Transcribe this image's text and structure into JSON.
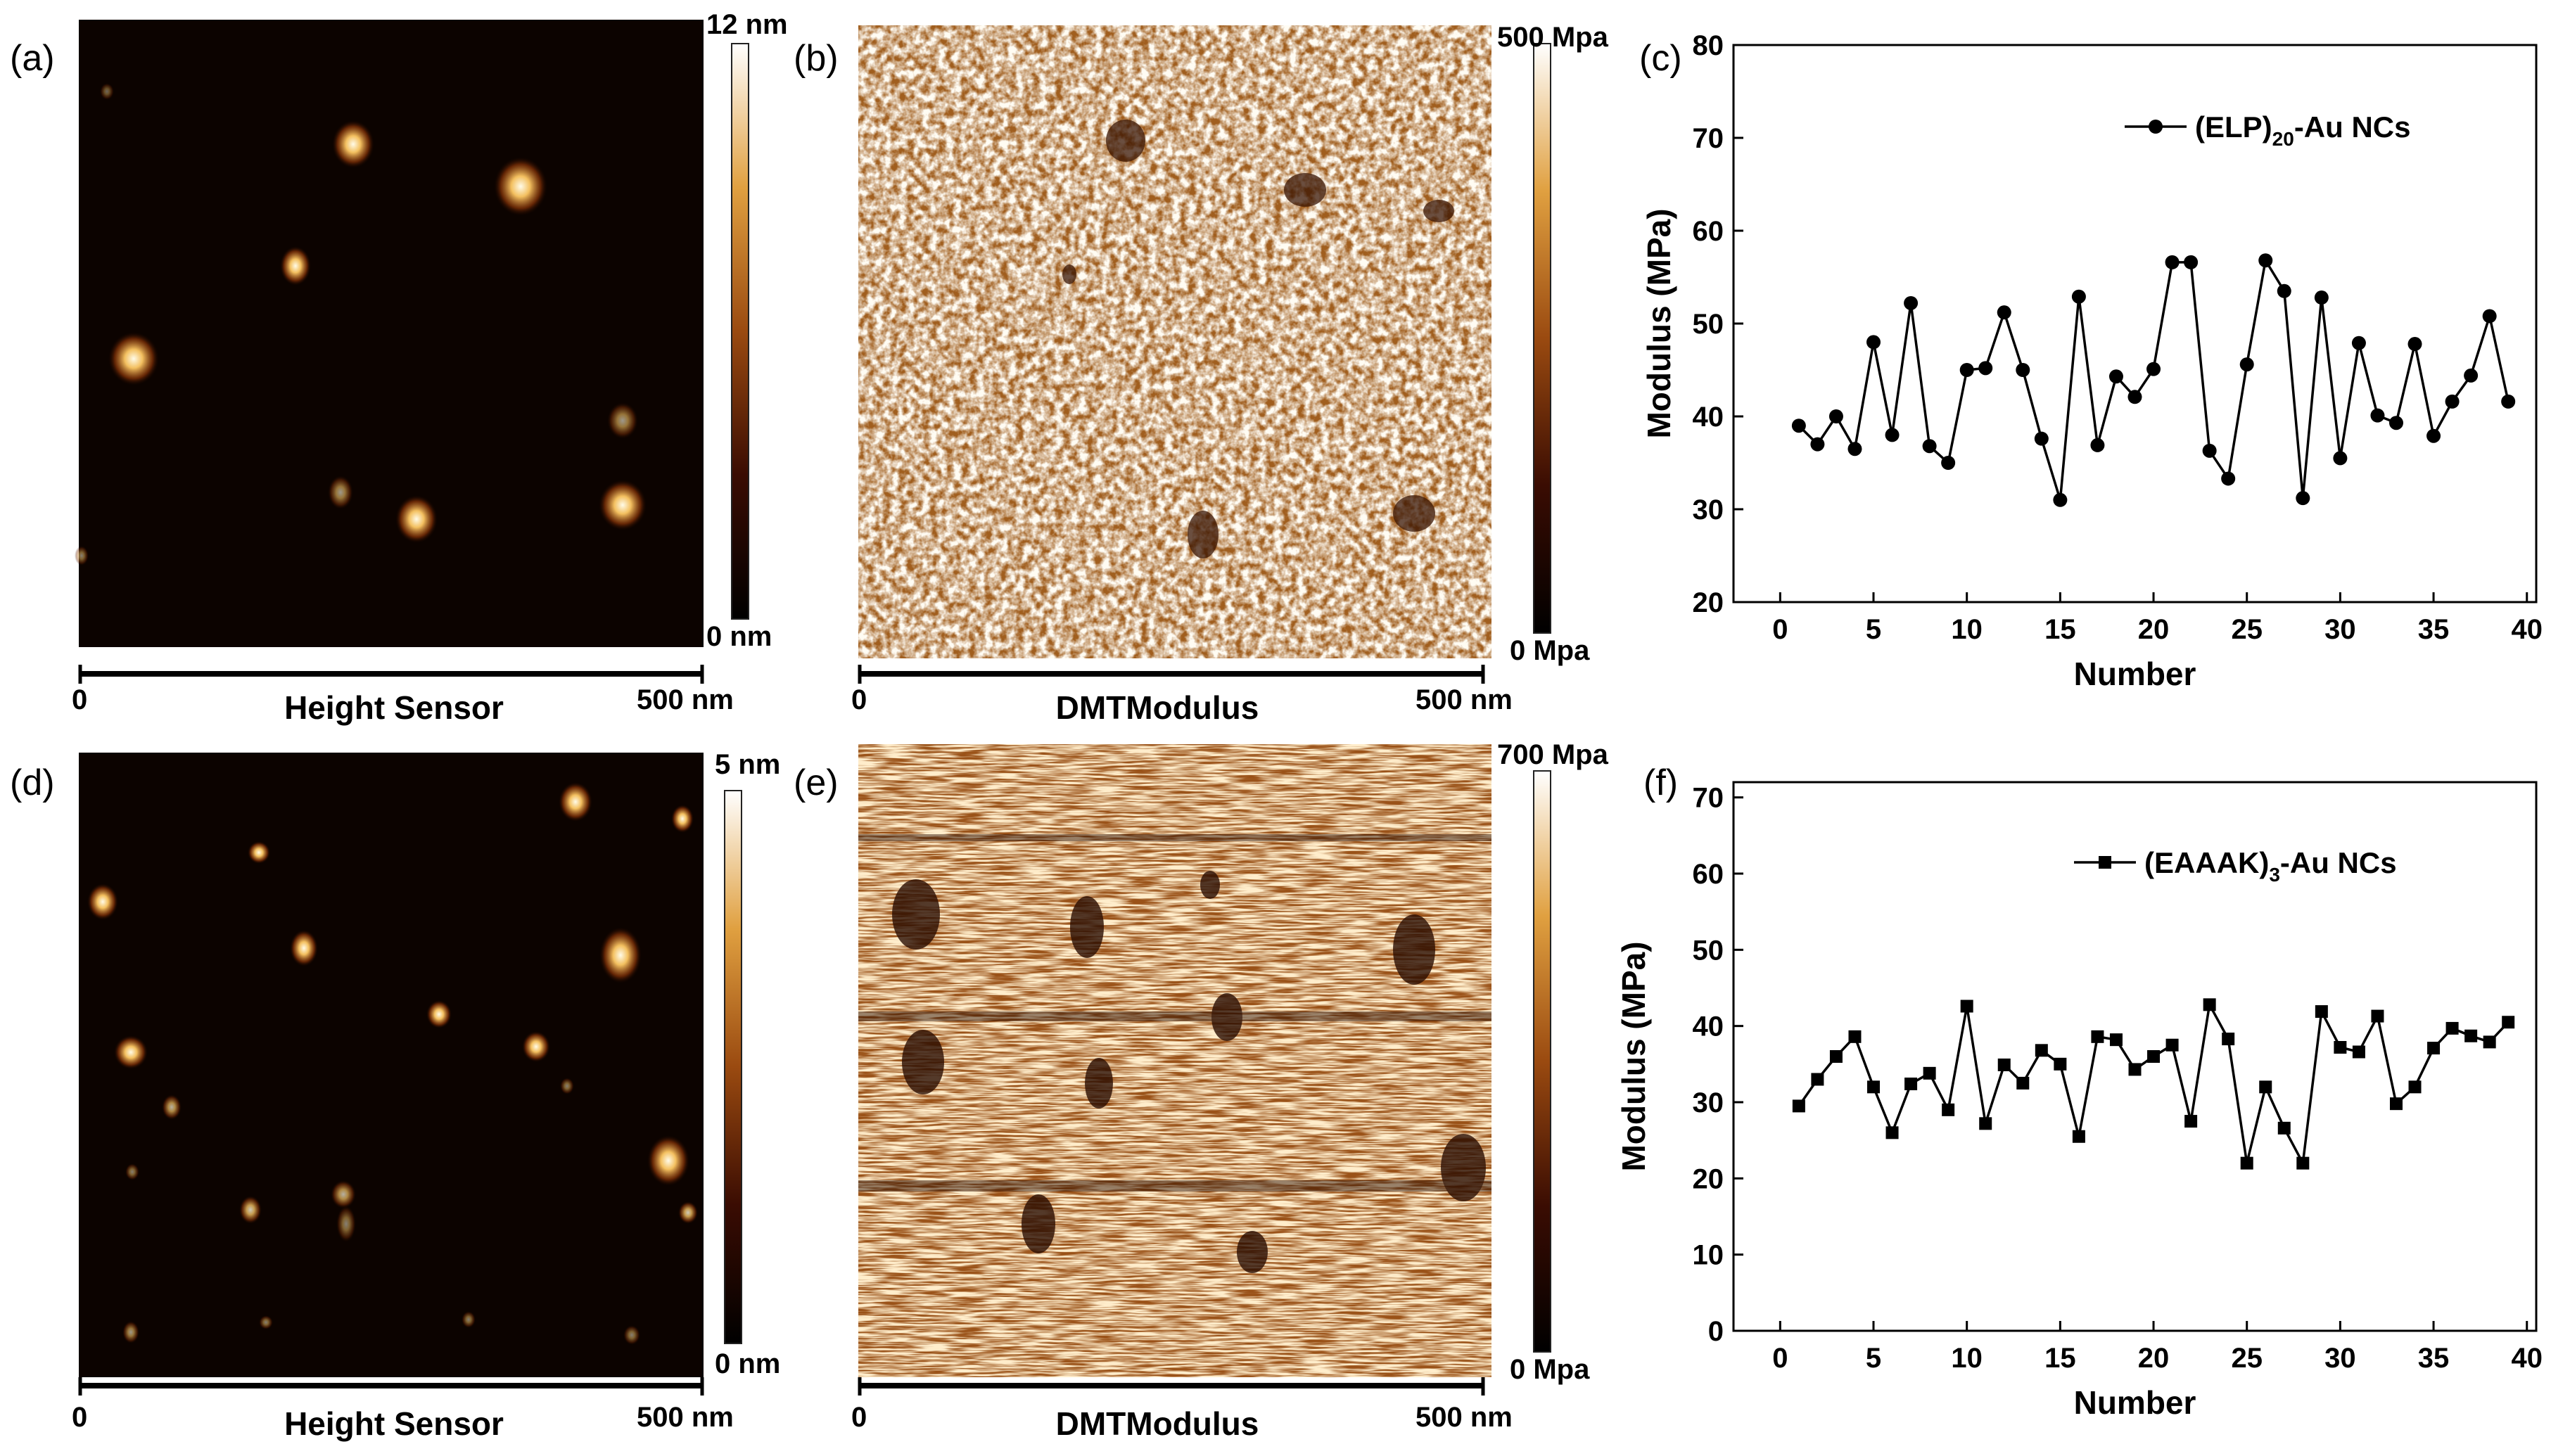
{
  "panels": {
    "a": {
      "label": "(a)",
      "caption": "Height Sensor",
      "scale_start": "0",
      "scale_end": "500 nm",
      "cbar_max": "12 nm",
      "cbar_min": "0 nm"
    },
    "b": {
      "label": "(b)",
      "caption": "DMTModulus",
      "scale_start": "0",
      "scale_end": "500 nm",
      "cbar_max": "500 Mpa",
      "cbar_min": "0 Mpa"
    },
    "c": {
      "label": "(c)"
    },
    "d": {
      "label": "(d)",
      "caption": "Height Sensor",
      "scale_start": "0",
      "scale_end": "500 nm",
      "cbar_max": "5 nm",
      "cbar_min": "0 nm"
    },
    "e": {
      "label": "(e)",
      "caption": "DMTModulus",
      "scale_start": "0",
      "scale_end": "500 nm",
      "cbar_max": "700 Mpa",
      "cbar_min": "0 Mpa"
    },
    "f": {
      "label": "(f)"
    }
  },
  "colors": {
    "afm_dark": "#0c0300",
    "afm_mid": "#b06a1a",
    "afm_bright": "#fff7e2",
    "modulus_bg": "#a05e1e"
  },
  "chart_data": [
    {
      "type": "line",
      "marker": "circle",
      "xlabel": "Number",
      "ylabel": "Modulus (MPa)",
      "xlim": [
        -2.5,
        40.5
      ],
      "ylim": [
        20,
        80
      ],
      "xticks": [
        0,
        5,
        10,
        15,
        20,
        25,
        30,
        35,
        40
      ],
      "yticks": [
        20,
        30,
        40,
        50,
        60,
        70,
        80
      ],
      "legend": {
        "prefix": "(ELP)",
        "sub": "20",
        "suffix": "-Au NCs",
        "position": "top-right"
      },
      "series": [
        {
          "name": "(ELP)20-Au NCs",
          "x": [
            1,
            2,
            3,
            4,
            5,
            6,
            7,
            8,
            9,
            10,
            11,
            12,
            13,
            14,
            15,
            16,
            17,
            18,
            19,
            20,
            21,
            22,
            23,
            24,
            25,
            26,
            27,
            28,
            29,
            30,
            31,
            32,
            33,
            34,
            35,
            36,
            37,
            38,
            39
          ],
          "values": [
            39,
            37,
            40,
            36.5,
            48,
            38,
            52.2,
            36.8,
            35,
            45,
            45.2,
            51.2,
            45,
            37.6,
            31,
            52.9,
            36.9,
            44.3,
            42.1,
            45.1,
            56.6,
            56.6,
            36.3,
            33.3,
            45.6,
            56.8,
            53.5,
            31.2,
            52.8,
            35.5,
            47.9,
            40.1,
            39.3,
            47.8,
            37.9,
            41.6,
            44.4,
            50.8,
            41.6
          ]
        }
      ]
    },
    {
      "type": "line",
      "marker": "square",
      "xlabel": "Number",
      "ylabel": "Modulus (MPa)",
      "xlim": [
        -2.5,
        40.5
      ],
      "ylim": [
        0,
        72
      ],
      "xticks": [
        0,
        5,
        10,
        15,
        20,
        25,
        30,
        35,
        40
      ],
      "yticks": [
        0,
        10,
        20,
        30,
        40,
        50,
        60,
        70
      ],
      "legend": {
        "prefix": "(EAAAK)",
        "sub": "3",
        "suffix": "-Au NCs",
        "position": "top-right"
      },
      "series": [
        {
          "name": "(EAAAK)3-Au NCs",
          "x": [
            1,
            2,
            3,
            4,
            5,
            6,
            7,
            8,
            9,
            10,
            11,
            12,
            13,
            14,
            15,
            16,
            17,
            18,
            19,
            20,
            21,
            22,
            23,
            24,
            25,
            26,
            27,
            28,
            29,
            30,
            31,
            32,
            33,
            34,
            35,
            36,
            37,
            38,
            39
          ],
          "values": [
            29.5,
            33,
            36,
            38.6,
            32,
            26,
            32.4,
            33.8,
            29,
            42.6,
            27.2,
            34.9,
            32.5,
            36.8,
            35,
            25.5,
            38.6,
            38.2,
            34.3,
            36,
            37.5,
            27.5,
            42.8,
            38.3,
            22,
            32,
            26.6,
            22,
            41.9,
            37.2,
            36.6,
            41.3,
            29.8,
            32,
            37.1,
            39.7,
            38.7,
            37.9,
            40.5
          ]
        }
      ]
    }
  ]
}
